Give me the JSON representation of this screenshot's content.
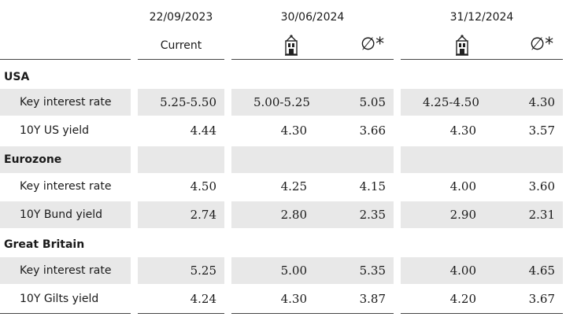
{
  "header": {
    "dates": [
      "22/09/2023",
      "30/06/2024",
      "31/12/2024"
    ],
    "current_label": "Current",
    "average_symbol": "∅*"
  },
  "table": {
    "sections": [
      {
        "name": "USA",
        "rows": [
          {
            "label": "Key interest rate",
            "values": [
              "5.25-5.50",
              "5.00-5.25",
              "5.05",
              "4.25-4.50",
              "4.30"
            ]
          },
          {
            "label": "10Y US yield",
            "values": [
              "4.44",
              "4.30",
              "3.66",
              "4.30",
              "3.57"
            ]
          }
        ]
      },
      {
        "name": "Eurozone",
        "rows": [
          {
            "label": "Key interest rate",
            "values": [
              "4.50",
              "4.25",
              "4.15",
              "4.00",
              "3.60"
            ]
          },
          {
            "label": "10Y Bund yield",
            "values": [
              "2.74",
              "2.80",
              "2.35",
              "2.90",
              "2.31"
            ]
          }
        ]
      },
      {
        "name": "Great Britain",
        "rows": [
          {
            "label": "Key interest rate",
            "values": [
              "5.25",
              "5.00",
              "5.35",
              "4.00",
              "4.65"
            ]
          },
          {
            "label": "10Y Gilts yield",
            "values": [
              "4.24",
              "4.30",
              "3.87",
              "4.20",
              "3.67"
            ]
          }
        ]
      }
    ]
  }
}
